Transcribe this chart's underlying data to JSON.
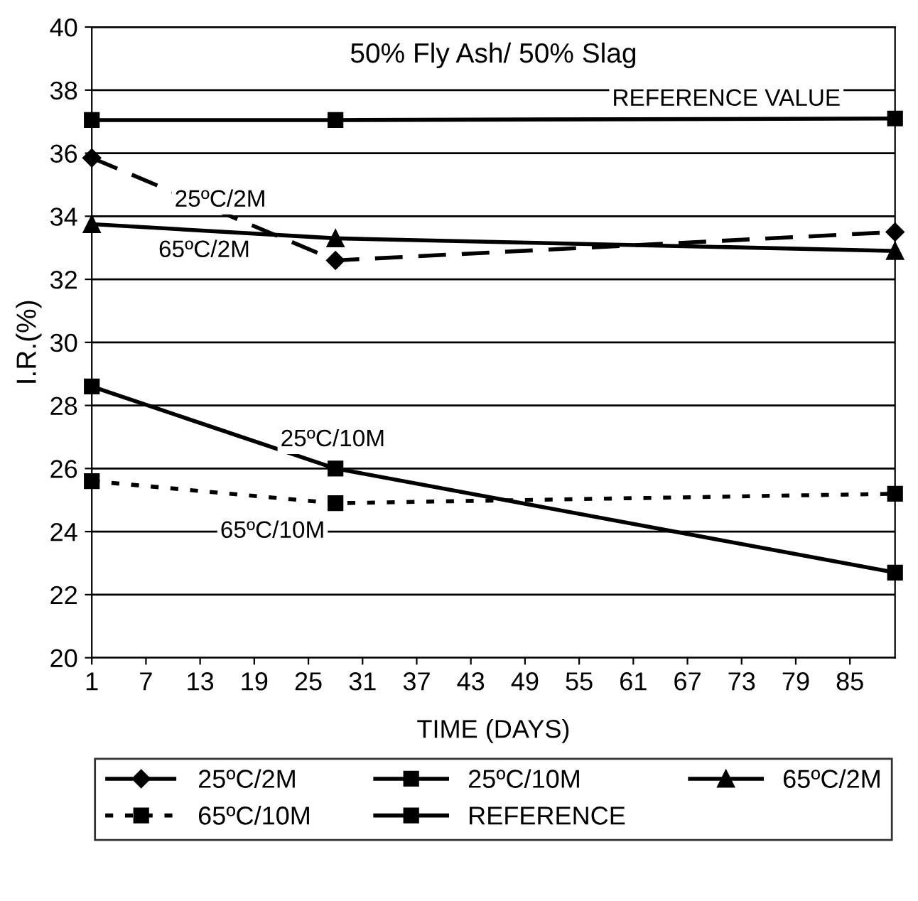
{
  "chart_data": {
    "type": "line",
    "title": "50% Fly Ash/ 50% Slag",
    "xlabel": "TIME (DAYS)",
    "ylabel": "I.R.(%)",
    "x": [
      1,
      28,
      90
    ],
    "series": [
      {
        "name": "25ºC/2M",
        "color": "#000000",
        "values": [
          35.85,
          32.6,
          33.5
        ],
        "marker": "diamond",
        "line_style": "dashed"
      },
      {
        "name": "25ºC/10M",
        "color": "#000000",
        "values": [
          28.6,
          26.0,
          22.7
        ],
        "marker": "square",
        "line_style": "solid"
      },
      {
        "name": "65ºC/2M",
        "color": "#000000",
        "values": [
          33.75,
          33.3,
          32.9
        ],
        "marker": "triangle",
        "line_style": "solid"
      },
      {
        "name": "65ºC/10M",
        "color": "#000000",
        "values": [
          25.6,
          24.9,
          25.2
        ],
        "marker": "square",
        "line_style": "dotted"
      },
      {
        "name": "REFERENCE",
        "color": "#000000",
        "values": [
          37.05,
          37.05,
          37.1
        ],
        "marker": "square",
        "line_style": "solid"
      }
    ],
    "annotations": [
      "REFERENCE VALUE",
      "25ºC/2M",
      "65ºC/2M",
      "25ºC/10M",
      "65ºC/10M"
    ],
    "xlim": [
      1,
      90
    ],
    "xticks": [
      1,
      7,
      13,
      19,
      25,
      31,
      37,
      43,
      49,
      55,
      61,
      67,
      73,
      79,
      85
    ],
    "ylim": [
      20,
      40
    ],
    "yticks": [
      20,
      22,
      24,
      26,
      28,
      30,
      32,
      34,
      36,
      38,
      40
    ],
    "grid": "y",
    "legend": "bottom"
  }
}
